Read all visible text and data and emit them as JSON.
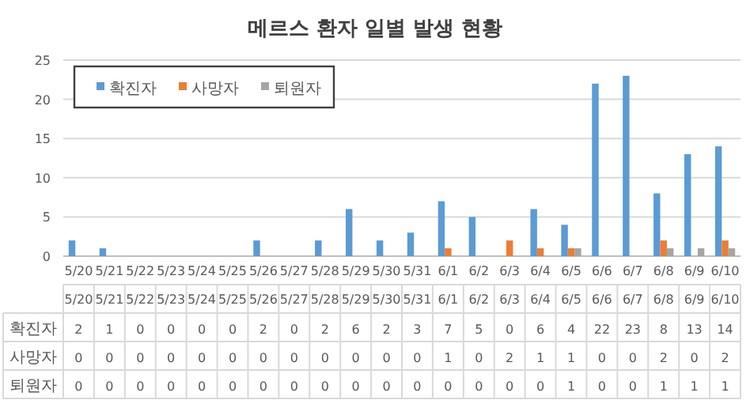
{
  "chart_data": {
    "type": "bar",
    "title": "메르스 환자 일별 발생 현황",
    "categories": [
      "5/20",
      "5/21",
      "5/22",
      "5/23",
      "5/24",
      "5/25",
      "5/26",
      "5/27",
      "5/28",
      "5/29",
      "5/30",
      "5/31",
      "6/1",
      "6/2",
      "6/3",
      "6/4",
      "6/5",
      "6/6",
      "6/7",
      "6/8",
      "6/9",
      "6/10"
    ],
    "series": [
      {
        "name": "확진자",
        "color": "#5b9bd5",
        "values": [
          2,
          1,
          0,
          0,
          0,
          0,
          2,
          0,
          2,
          6,
          2,
          3,
          7,
          5,
          0,
          6,
          4,
          22,
          23,
          8,
          13,
          14
        ]
      },
      {
        "name": "사망자",
        "color": "#ed7d31",
        "values": [
          0,
          0,
          0,
          0,
          0,
          0,
          0,
          0,
          0,
          0,
          0,
          0,
          1,
          0,
          2,
          1,
          1,
          0,
          0,
          2,
          0,
          2
        ]
      },
      {
        "name": "퇴원자",
        "color": "#a5a5a5",
        "values": [
          0,
          0,
          0,
          0,
          0,
          0,
          0,
          0,
          0,
          0,
          0,
          0,
          0,
          0,
          0,
          0,
          1,
          0,
          0,
          1,
          1,
          1
        ]
      }
    ],
    "ylim": [
      0,
      25
    ],
    "yticks": [
      0,
      5,
      10,
      15,
      20,
      25
    ],
    "grid": "y",
    "legend": "top left",
    "data_labels": true
  }
}
